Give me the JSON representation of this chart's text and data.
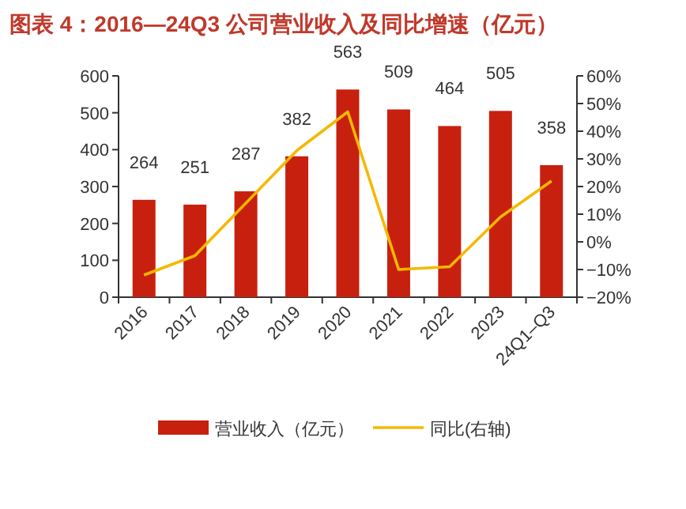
{
  "chart_data": {
    "type": "bar",
    "title": "图表 4：2016—24Q3 公司营业收入及同比增速（亿元）",
    "categories": [
      "2016",
      "2017",
      "2018",
      "2019",
      "2020",
      "2021",
      "2022",
      "2023",
      "24Q1–Q3"
    ],
    "series": [
      {
        "name": "营业收入（亿元）",
        "color": "#c8200e",
        "values": [
          264,
          251,
          287,
          382,
          563,
          509,
          464,
          505,
          358
        ],
        "value_labels": [
          "264",
          "251",
          "287",
          "382",
          "563",
          "509",
          "464",
          "505",
          "358"
        ]
      },
      {
        "name": "同比(右轴)",
        "type": "line",
        "axis": "y2",
        "color": "#f5b800",
        "values": [
          -12,
          -5,
          14,
          33,
          47,
          -10,
          -9,
          9,
          22
        ]
      }
    ],
    "ylim": [
      0,
      600
    ],
    "yticks": [
      0,
      100,
      200,
      300,
      400,
      500,
      600
    ],
    "y2lim": [
      -20,
      60
    ],
    "y2ticks": [
      {
        "value": -20,
        "label": "−20%"
      },
      {
        "value": -10,
        "label": "−10%"
      },
      {
        "value": 0,
        "label": "0%"
      },
      {
        "value": 10,
        "label": "10%"
      },
      {
        "value": 20,
        "label": "20%"
      },
      {
        "value": 30,
        "label": "30%"
      },
      {
        "value": 40,
        "label": "40%"
      },
      {
        "value": 50,
        "label": "50%"
      },
      {
        "value": 60,
        "label": "60%"
      }
    ],
    "legend": "bottom",
    "grid": false,
    "marker": "none"
  }
}
